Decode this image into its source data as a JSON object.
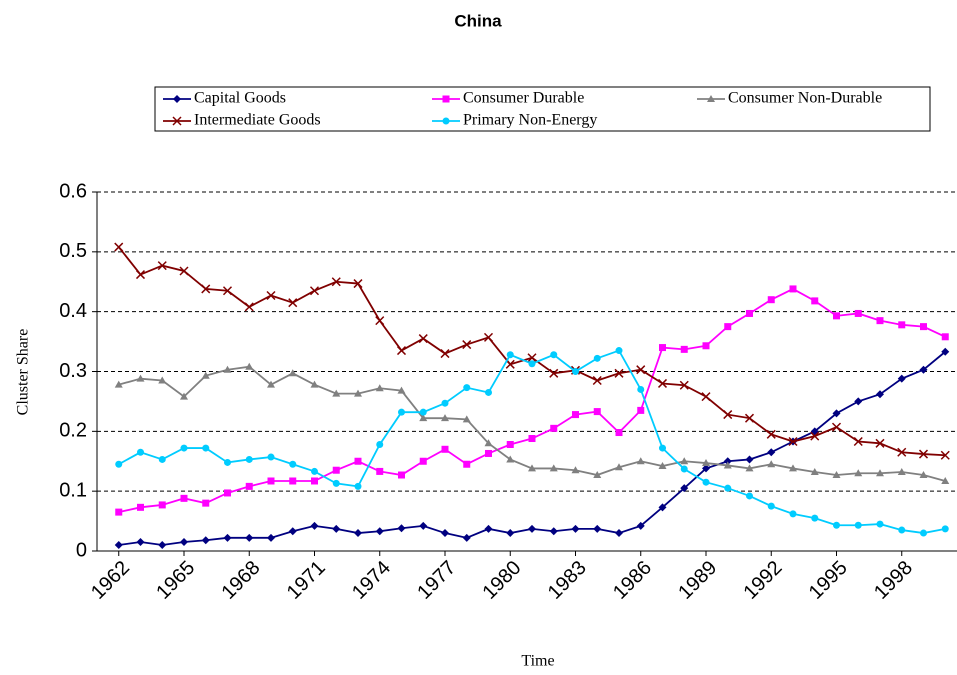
{
  "chart_data": {
    "type": "line",
    "title": "China",
    "x_label": "Time",
    "y_label": "Cluster Share",
    "x": [
      1962,
      1963,
      1964,
      1965,
      1966,
      1967,
      1968,
      1969,
      1970,
      1971,
      1972,
      1973,
      1974,
      1975,
      1976,
      1977,
      1978,
      1979,
      1980,
      1981,
      1982,
      1983,
      1984,
      1985,
      1986,
      1987,
      1988,
      1989,
      1990,
      1991,
      1992,
      1993,
      1994,
      1995,
      1996,
      1997,
      1998,
      1999,
      2000
    ],
    "xlim": [
      1961,
      2001
    ],
    "xticks": [
      1962,
      1965,
      1968,
      1971,
      1974,
      1977,
      1980,
      1983,
      1986,
      1989,
      1992,
      1995,
      1998
    ],
    "ylim": [
      0,
      0.6
    ],
    "yticks": [
      0,
      0.1,
      0.2,
      0.3,
      0.4,
      0.5,
      0.6
    ],
    "grid": true,
    "series": [
      {
        "name": "Capital Goods",
        "color": "#000080",
        "marker": "diamond",
        "values": [
          0.01,
          0.015,
          0.01,
          0.015,
          0.018,
          0.022,
          0.022,
          0.022,
          0.033,
          0.042,
          0.037,
          0.03,
          0.033,
          0.038,
          0.042,
          0.03,
          0.022,
          0.037,
          0.03,
          0.037,
          0.033,
          0.037,
          0.037,
          0.03,
          0.042,
          0.073,
          0.105,
          0.138,
          0.15,
          0.153,
          0.165,
          0.183,
          0.2,
          0.23,
          0.25,
          0.262,
          0.288,
          0.303,
          0.333
        ]
      },
      {
        "name": "Consumer Durable",
        "color": "#ff00ff",
        "marker": "square",
        "values": [
          0.065,
          0.073,
          0.077,
          0.088,
          0.08,
          0.097,
          0.108,
          0.117,
          0.117,
          0.117,
          0.135,
          0.15,
          0.133,
          0.127,
          0.15,
          0.17,
          0.145,
          0.163,
          0.178,
          0.188,
          0.205,
          0.228,
          0.233,
          0.198,
          0.235,
          0.34,
          0.337,
          0.343,
          0.375,
          0.397,
          0.42,
          0.438,
          0.418,
          0.393,
          0.397,
          0.385,
          0.378,
          0.375,
          0.358
        ]
      },
      {
        "name": "Consumer Non-Durable",
        "color": "#808080",
        "marker": "triangle",
        "values": [
          0.278,
          0.288,
          0.285,
          0.258,
          0.293,
          0.303,
          0.308,
          0.278,
          0.297,
          0.278,
          0.263,
          0.263,
          0.272,
          0.268,
          0.222,
          0.222,
          0.22,
          0.18,
          0.153,
          0.138,
          0.138,
          0.135,
          0.127,
          0.14,
          0.15,
          0.142,
          0.15,
          0.147,
          0.143,
          0.138,
          0.145,
          0.138,
          0.132,
          0.127,
          0.13,
          0.13,
          0.132,
          0.127,
          0.117
        ]
      },
      {
        "name": "Intermediate Goods",
        "color": "#800000",
        "marker": "x",
        "values": [
          0.508,
          0.462,
          0.477,
          0.468,
          0.438,
          0.435,
          0.408,
          0.427,
          0.415,
          0.435,
          0.45,
          0.447,
          0.385,
          0.335,
          0.355,
          0.33,
          0.345,
          0.357,
          0.312,
          0.323,
          0.297,
          0.302,
          0.285,
          0.297,
          0.303,
          0.28,
          0.277,
          0.258,
          0.228,
          0.222,
          0.195,
          0.183,
          0.192,
          0.207,
          0.183,
          0.18,
          0.165,
          0.162,
          0.16
        ]
      },
      {
        "name": "Primary Non-Energy",
        "color": "#00ccff",
        "marker": "circle",
        "values": [
          0.145,
          0.165,
          0.153,
          0.172,
          0.172,
          0.148,
          0.153,
          0.157,
          0.145,
          0.133,
          0.113,
          0.108,
          0.178,
          0.232,
          0.232,
          0.247,
          0.273,
          0.265,
          0.328,
          0.313,
          0.328,
          0.3,
          0.322,
          0.335,
          0.27,
          0.172,
          0.137,
          0.115,
          0.105,
          0.092,
          0.075,
          0.062,
          0.055,
          0.043,
          0.043,
          0.045,
          0.035,
          0.03,
          0.037
        ]
      }
    ]
  }
}
